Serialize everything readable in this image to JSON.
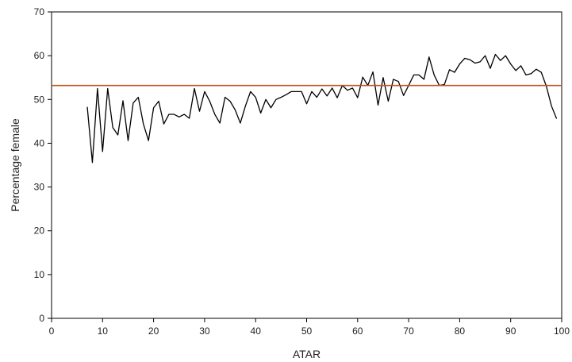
{
  "chart_data": {
    "type": "line",
    "title": "",
    "xlabel": "ATAR",
    "ylabel": "Percentage female",
    "xlim": [
      0,
      100
    ],
    "ylim": [
      0,
      70
    ],
    "x_ticks": [
      0,
      10,
      20,
      30,
      40,
      50,
      60,
      70,
      80,
      90,
      100
    ],
    "y_ticks": [
      0,
      10,
      20,
      30,
      40,
      50,
      60,
      70
    ],
    "grid": false,
    "series": [
      {
        "color": "#000000",
        "x": [
          7,
          8,
          9,
          10,
          11,
          12,
          13,
          14,
          15,
          16,
          17,
          18,
          19,
          20,
          21,
          22,
          23,
          24,
          25,
          26,
          27,
          28,
          29,
          30,
          31,
          32,
          33,
          34,
          35,
          36,
          37,
          38,
          39,
          40,
          41,
          42,
          43,
          44,
          45,
          46,
          47,
          48,
          49,
          50,
          51,
          52,
          53,
          54,
          55,
          56,
          57,
          58,
          59,
          60,
          61,
          62,
          63,
          64,
          65,
          66,
          67,
          68,
          69,
          70,
          71,
          72,
          73,
          74,
          75,
          76,
          77,
          78,
          79,
          80,
          81,
          82,
          83,
          84,
          85,
          86,
          87,
          88,
          89,
          90,
          91,
          92,
          93,
          94,
          95,
          96,
          97,
          98,
          99
        ],
        "y": [
          48.3,
          35.6,
          52.5,
          38.1,
          52.5,
          43.6,
          41.9,
          49.7,
          40.6,
          49.2,
          50.5,
          44.4,
          40.6,
          48.1,
          49.6,
          44.4,
          46.6,
          46.6,
          46.0,
          46.6,
          45.7,
          52.5,
          47.3,
          51.8,
          49.6,
          46.6,
          44.6,
          50.5,
          49.6,
          47.6,
          44.6,
          48.5,
          51.8,
          50.5,
          46.9,
          50.0,
          48.1,
          50.0,
          50.5,
          51.1,
          51.8,
          51.8,
          51.8,
          49.0,
          51.8,
          50.5,
          52.4,
          50.8,
          52.6,
          50.4,
          53.2,
          52.1,
          52.6,
          50.4,
          55.1,
          53.2,
          56.3,
          48.7,
          55.0,
          49.6,
          54.6,
          54.1,
          50.9,
          53.2,
          55.6,
          55.6,
          54.6,
          59.7,
          55.6,
          53.2,
          53.4,
          56.8,
          56.2,
          58.1,
          59.4,
          59.1,
          58.3,
          58.6,
          60.0,
          57.1,
          60.3,
          58.9,
          60.0,
          58.1,
          56.6,
          57.7,
          55.6,
          55.9,
          56.9,
          56.2,
          53.0,
          48.5,
          45.6
        ]
      },
      {
        "color": "#c0541a",
        "x": [
          0,
          100
        ],
        "y": [
          53.2,
          53.2
        ]
      }
    ]
  }
}
